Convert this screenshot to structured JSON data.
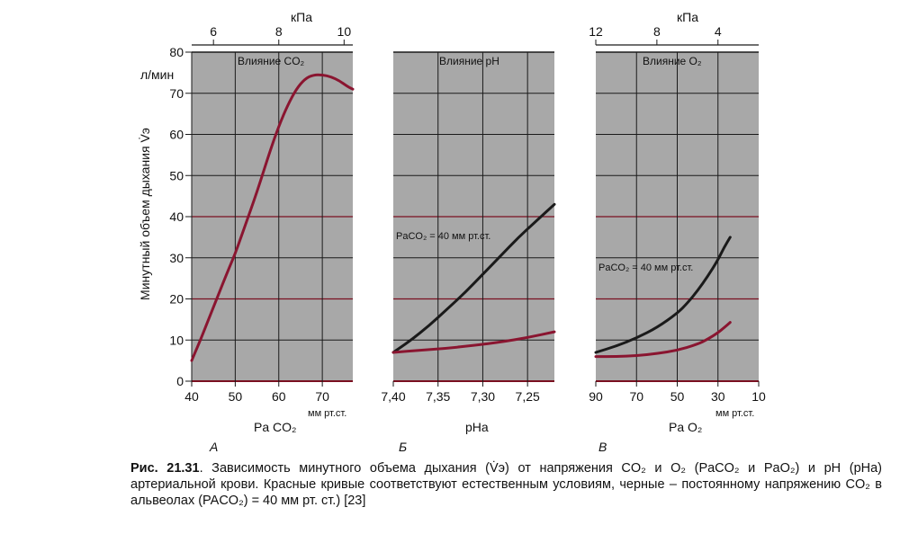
{
  "colors": {
    "panel_bg": "#a8a8a8",
    "grid_black": "#1a1a1a",
    "grid_red": "#7a1020",
    "curve_red": "#8a1530",
    "curve_black": "#1a1a1a"
  },
  "y_axis": {
    "label": "Минутный объем дыхания V̇э",
    "unit": "л/мин",
    "ticks": [
      "0",
      "10",
      "20",
      "30",
      "40",
      "50",
      "60",
      "70",
      "80"
    ]
  },
  "chart_data": [
    {
      "panel_letter": "А",
      "title": "Влияние CO₂",
      "type": "line",
      "xlabel": "Pa CO₂",
      "xunit": "мм рт.ст.",
      "xlim": [
        40,
        77
      ],
      "ylim": [
        0,
        80
      ],
      "x_ticks": [
        "40",
        "50",
        "60",
        "70"
      ],
      "top_axis": {
        "unit": "кПа",
        "ticks": [
          "6",
          "8",
          "10"
        ]
      },
      "series": [
        {
          "color": "red",
          "x": [
            40,
            42,
            45,
            48,
            50,
            52,
            55,
            58,
            60,
            62,
            64,
            66,
            68,
            70,
            72,
            74,
            76,
            77
          ],
          "y": [
            5,
            10,
            18,
            26,
            31,
            37,
            46,
            56,
            62,
            67,
            71,
            73.5,
            74.5,
            74.5,
            74,
            73,
            71.5,
            71
          ]
        }
      ]
    },
    {
      "panel_letter": "Б",
      "title": "Влияние pH",
      "type": "line",
      "xlabel": "pHa",
      "xunit": "",
      "xlim": [
        7.4,
        7.22
      ],
      "ylim": [
        0,
        80
      ],
      "x_ticks": [
        "7,40",
        "7,35",
        "7,30",
        "7,25"
      ],
      "annotation": "PaCO₂ = 40 мм рт.ст.",
      "series": [
        {
          "color": "black",
          "x": [
            7.4,
            7.38,
            7.36,
            7.34,
            7.32,
            7.3,
            7.28,
            7.26,
            7.24,
            7.22
          ],
          "y": [
            7,
            10,
            13.5,
            17.5,
            21.5,
            26,
            30.5,
            35,
            39,
            43
          ]
        },
        {
          "color": "red",
          "x": [
            7.4,
            7.37,
            7.34,
            7.31,
            7.28,
            7.25,
            7.22
          ],
          "y": [
            7,
            7.5,
            8,
            8.7,
            9.5,
            10.6,
            12
          ]
        }
      ]
    },
    {
      "panel_letter": "В",
      "title": "Влияние O₂",
      "type": "line",
      "xlabel": "Pa O₂",
      "xunit": "мм рт.ст.",
      "xlim": [
        90,
        10
      ],
      "ylim": [
        0,
        80
      ],
      "x_ticks": [
        "90",
        "70",
        "50",
        "30",
        "10"
      ],
      "top_axis": {
        "unit": "кПа",
        "ticks": [
          "12",
          "8",
          "4"
        ]
      },
      "annotation": "PaCO₂ = 40 мм рт.ст.",
      "series": [
        {
          "color": "black",
          "x": [
            90,
            80,
            70,
            60,
            50,
            45,
            40,
            35,
            30,
            27,
            24
          ],
          "y": [
            7,
            8.5,
            10.5,
            13,
            16.5,
            19,
            22,
            25.5,
            29.5,
            32.5,
            35
          ]
        },
        {
          "color": "red",
          "x": [
            90,
            80,
            70,
            60,
            50,
            40,
            35,
            30,
            27,
            24
          ],
          "y": [
            6,
            6,
            6.2,
            6.7,
            7.5,
            9,
            10.2,
            11.8,
            13,
            14.3
          ]
        }
      ]
    }
  ],
  "caption": {
    "lead": "Рис. 21.31",
    "text": ". Зависимость минутного объема дыхания (V̇э) от напряжения CO₂ и O₂ (PaCO₂ и PaO₂) и pH (pHa) артериальной крови. Красные кривые соответствуют естественным условиям, черные – постоянному напряжению CO₂ в альвеолах (PACO₂) = 40 мм рт. ст.) [23]"
  }
}
